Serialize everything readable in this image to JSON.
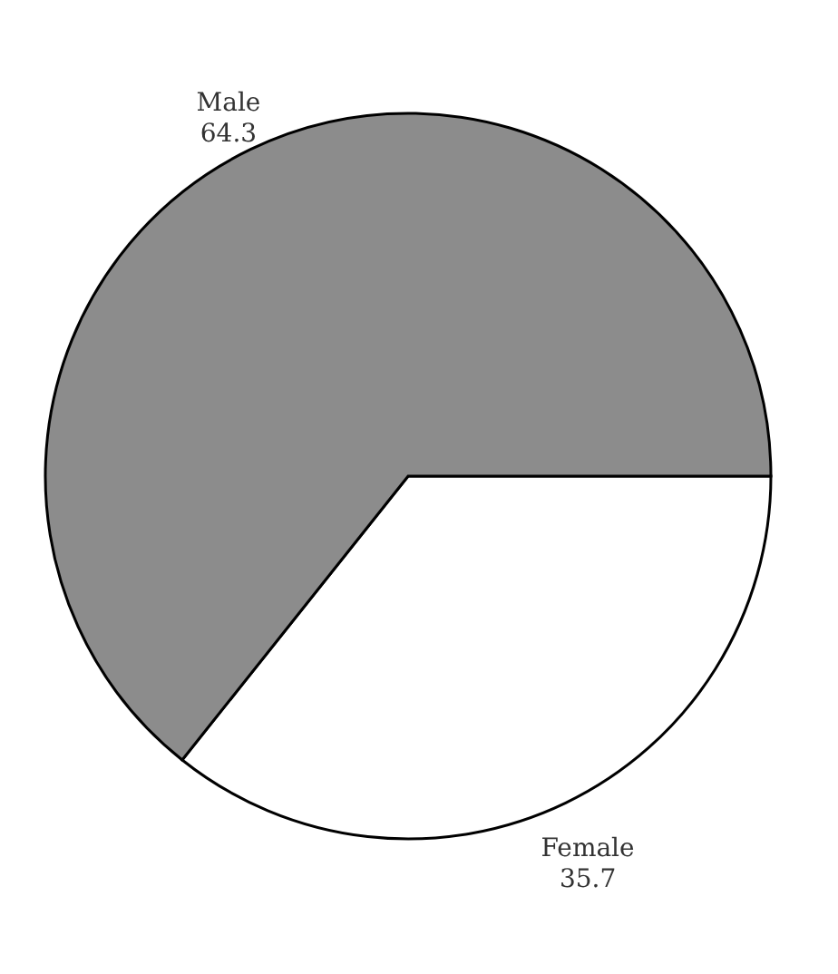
{
  "chart_data": {
    "type": "pie",
    "categories": [
      "Female",
      "Male"
    ],
    "values": [
      35.7,
      64.3
    ],
    "colors": [
      "#ffffff",
      "#8c8c8c"
    ],
    "data_labels": true,
    "legend": false
  }
}
